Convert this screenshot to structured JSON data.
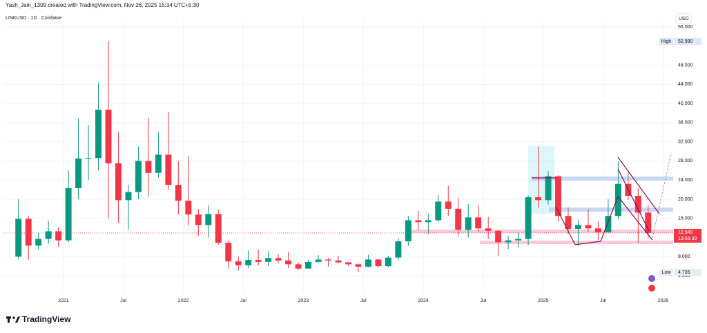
{
  "header": "Yash_Jain_1309 created with TradingView.com, Nov 26, 2025 15:34 UTC+5:30",
  "brand": "TradingView",
  "chart_data": {
    "type": "candlestick",
    "title": "LINKUSD · 1D · Coinbase",
    "currency": "USD",
    "up_color": "#089981",
    "down_color": "#f23645",
    "x": [
      "2020-08",
      "2020-09",
      "2020-10",
      "2020-11",
      "2020-12",
      "2021-01",
      "2021-02",
      "2021-03",
      "2021-04",
      "2021-05",
      "2021-06",
      "2021-07",
      "2021-08",
      "2021-09",
      "2021-10",
      "2021-11",
      "2021-12",
      "2022-01",
      "2022-02",
      "2022-03",
      "2022-04",
      "2022-05",
      "2022-06",
      "2022-07",
      "2022-08",
      "2022-09",
      "2022-10",
      "2022-11",
      "2022-12",
      "2023-01",
      "2023-02",
      "2023-03",
      "2023-04",
      "2023-05",
      "2023-06",
      "2023-07",
      "2023-08",
      "2023-09",
      "2023-10",
      "2023-11",
      "2023-12",
      "2024-01",
      "2024-02",
      "2024-03",
      "2024-04",
      "2024-05",
      "2024-06",
      "2024-07",
      "2024-08",
      "2024-09",
      "2024-10",
      "2024-11",
      "2024-12",
      "2025-01",
      "2025-02",
      "2025-03",
      "2025-04",
      "2025-05",
      "2025-06",
      "2025-07",
      "2025-08",
      "2025-09",
      "2025-10",
      "2025-11"
    ],
    "open": [
      8.0,
      15.9,
      10.3,
      11.7,
      13.3,
      11.4,
      22.3,
      28.5,
      28.6,
      38.7,
      27.5,
      19.8,
      21.5,
      28.0,
      25.5,
      29.3,
      23.0,
      19.7,
      16.8,
      14.6,
      16.9,
      10.9,
      7.0,
      6.2,
      7.3,
      6.9,
      7.7,
      7.2,
      6.4,
      5.5,
      6.9,
      7.4,
      7.2,
      6.8,
      6.4,
      5.9,
      7.4,
      6.0,
      7.8,
      11.2,
      15.6,
      15.2,
      15.6,
      19.5,
      18.0,
      13.6,
      16.2,
      13.9,
      13.4,
      11.0,
      11.4,
      11.7,
      20.4,
      19.8,
      24.8,
      16.5,
      13.8,
      14.6,
      13.9,
      13.1,
      16.5,
      23.2,
      20.7,
      17.2
    ],
    "high": [
      20.0,
      16.5,
      13.0,
      15.5,
      14.2,
      26.0,
      36.9,
      35.5,
      44.3,
      52.99,
      34.0,
      23.0,
      31.0,
      37.0,
      34.0,
      38.2,
      28.0,
      29.0,
      18.0,
      18.8,
      17.8,
      11.3,
      8.0,
      9.3,
      9.5,
      9.2,
      8.4,
      9.0,
      6.8,
      7.3,
      8.3,
      7.7,
      8.2,
      6.9,
      6.6,
      8.4,
      7.6,
      8.2,
      11.8,
      16.5,
      17.6,
      16.9,
      20.9,
      22.8,
      20.3,
      19.0,
      18.7,
      16.3,
      13.5,
      12.3,
      12.9,
      20.8,
      30.9,
      25.9,
      25.0,
      18.3,
      15.6,
      17.9,
      15.3,
      20.0,
      27.9,
      25.9,
      22.3,
      18.7
    ],
    "low": [
      7.5,
      7.3,
      9.5,
      10.7,
      10.1,
      11.0,
      20.0,
      24.0,
      26.0,
      16.0,
      15.0,
      13.6,
      20.0,
      20.5,
      24.5,
      22.0,
      16.8,
      14.5,
      12.3,
      12.0,
      10.5,
      5.5,
      5.1,
      5.6,
      6.2,
      6.0,
      6.6,
      5.6,
      5.2,
      5.5,
      6.6,
      5.9,
      6.6,
      6.0,
      4.735,
      5.8,
      5.7,
      5.8,
      7.2,
      10.2,
      13.5,
      12.6,
      15.3,
      16.5,
      12.1,
      12.0,
      13.1,
      11.7,
      8.1,
      9.6,
      10.0,
      10.4,
      18.2,
      18.9,
      15.3,
      12.7,
      10.2,
      13.2,
      11.5,
      13.0,
      15.8,
      19.8,
      10.9,
      11.8
    ],
    "close": [
      15.9,
      10.3,
      11.7,
      13.3,
      11.4,
      22.3,
      28.5,
      28.6,
      38.7,
      27.5,
      19.8,
      21.5,
      28.0,
      25.5,
      29.3,
      23.0,
      19.7,
      16.8,
      14.6,
      16.9,
      10.9,
      7.0,
      6.2,
      7.3,
      6.9,
      7.7,
      7.2,
      6.4,
      5.5,
      6.9,
      7.4,
      7.2,
      6.8,
      6.4,
      5.9,
      7.4,
      6.0,
      7.8,
      11.2,
      15.6,
      15.2,
      15.6,
      19.5,
      18.0,
      13.6,
      16.2,
      13.9,
      13.4,
      11.0,
      11.4,
      11.7,
      20.4,
      19.8,
      24.8,
      16.5,
      13.8,
      14.6,
      13.9,
      13.1,
      16.5,
      23.2,
      20.7,
      17.2,
      12.94
    ],
    "xlim": [
      "2020-07",
      "2026-02"
    ],
    "xticks": [
      {
        "value": "2021-01",
        "label": "2021"
      },
      {
        "value": "2021-07",
        "label": "Jul"
      },
      {
        "value": "2022-01",
        "label": "2022"
      },
      {
        "value": "2022-07",
        "label": "Jul"
      },
      {
        "value": "2023-01",
        "label": "2023"
      },
      {
        "value": "2023-07",
        "label": "Jul"
      },
      {
        "value": "2024-01",
        "label": "2024"
      },
      {
        "value": "2024-07",
        "label": "Jul"
      },
      {
        "value": "2025-01",
        "label": "2025"
      },
      {
        "value": "2025-07",
        "label": "Jul"
      },
      {
        "value": "2026-01",
        "label": "2026"
      }
    ],
    "ylim": [
      0.4,
      57.3
    ],
    "yticks": [
      {
        "value": 4,
        "label": "4.000"
      },
      {
        "value": 8,
        "label": "8.000"
      },
      {
        "value": 16,
        "label": "16.000"
      },
      {
        "value": 20,
        "label": "20.000"
      },
      {
        "value": 24,
        "label": "24.000"
      },
      {
        "value": 28,
        "label": "28.000"
      },
      {
        "value": 32,
        "label": "32.000"
      },
      {
        "value": 36,
        "label": "36.000"
      },
      {
        "value": 40,
        "label": "40.000"
      },
      {
        "value": 44,
        "label": "44.000"
      },
      {
        "value": 48,
        "label": "48.000"
      },
      {
        "value": 56,
        "label": "56.000"
      }
    ],
    "grid": true,
    "high_marker": {
      "name": "High",
      "value": 52.99,
      "label": "52.990"
    },
    "low_marker": {
      "name": "Low",
      "value": 4.735,
      "label": "4.735"
    },
    "last_price": {
      "value": 12.94,
      "label": "12.940"
    },
    "countdown": "13:55:39"
  }
}
